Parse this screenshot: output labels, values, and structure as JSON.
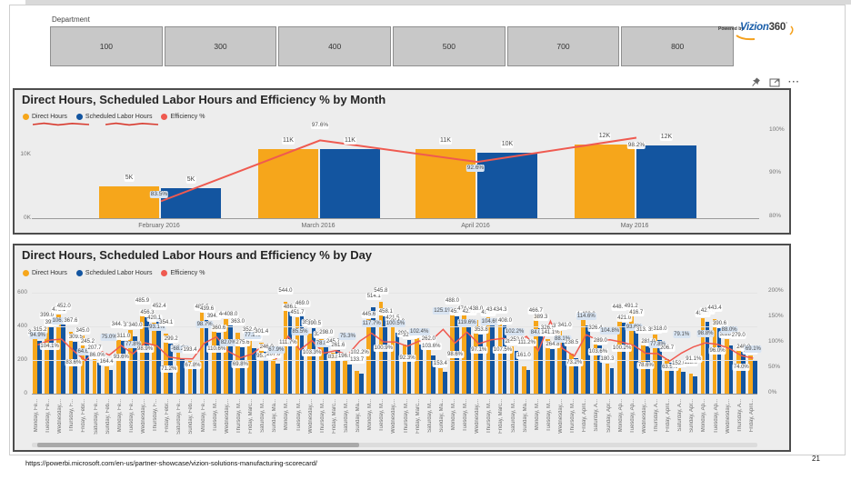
{
  "page": {
    "url": "https://powerbi.microsoft.com/en-us/partner-showcase/vizion-solutions-manufacturing-scorecard/",
    "page_number": "21"
  },
  "slicer": {
    "label": "Department",
    "buttons": [
      "100",
      "300",
      "400",
      "500",
      "700",
      "800"
    ]
  },
  "logo": {
    "powered_by": "Powered by",
    "brand_vizion": "Vizion",
    "brand_360": "360",
    "mark": "°"
  },
  "visual_header": {
    "icons": [
      "pin-icon",
      "focus-mode-icon",
      "more-options-icon"
    ],
    "more_glyph": "···"
  },
  "colors": {
    "direct_hours": "#F6A61B",
    "scheduled_hours": "#1355A0",
    "efficiency_line": "#EF5A50",
    "panel_bg": "#EDEDED",
    "panel_border": "#4D4D4D",
    "slicer_button": "#C8C8C8",
    "eff_label_tint": "#D8E4F2"
  },
  "chart_data": [
    {
      "type": "bar",
      "title": "Direct Hours, Scheduled Labor Hours and Efficiency % by Month",
      "categories": [
        "February 2016",
        "March 2016",
        "April 2016",
        "May 2016"
      ],
      "series": [
        {
          "name": "Direct Hours",
          "color": "#F6A61B",
          "values_k": [
            5.0,
            10.9,
            10.9,
            11.6
          ],
          "labels": [
            "5K",
            "11K",
            "11K",
            "12K"
          ]
        },
        {
          "name": "Scheduled Labor Hours",
          "color": "#1355A0",
          "values_k": [
            4.65,
            10.85,
            10.25,
            11.5
          ],
          "labels": [
            "5K",
            "11K",
            "10K",
            "12K"
          ]
        },
        {
          "name": "Efficiency %",
          "color": "#EF5A50",
          "axis": "right",
          "values_pct": [
            83.5,
            97.6,
            92.6,
            98.2
          ],
          "labels": [
            "83.5%",
            "97.6%",
            "92.6%",
            "98.2%"
          ]
        }
      ],
      "ylabel_left_ticks": [
        "10K",
        "0K"
      ],
      "ylabel_right_ticks": [
        "100%",
        "90%",
        "80%"
      ],
      "y_left_range_k": [
        0,
        14.3
      ],
      "y_right_range_pct": [
        80,
        100
      ],
      "legend_underline_annotation": true
    },
    {
      "type": "bar",
      "title": "Direct Hours, Scheduled Labor Hours and Efficiency % by Day",
      "series_names": [
        "Direct Hours",
        "Scheduled Labor Hours",
        "Efficiency %"
      ],
      "ylabel_left_ticks": [
        "600",
        "400",
        "200",
        "0"
      ],
      "ylabel_right_ticks": [
        "200%",
        "150%",
        "100%",
        "50%",
        "0%"
      ],
      "y_left_range": [
        0,
        600
      ],
      "y_right_range_pct": [
        0,
        200
      ],
      "days": [
        {
          "d": "Monday, Fe...",
          "dh": 333.6,
          "slh": 315.2,
          "eff": 94.9
        },
        {
          "d": "Tuesday, Fe...",
          "dh": 399.0,
          "slh": 393.1,
          "eff": 104.1
        },
        {
          "d": "Wednesday,...",
          "dh": 470.1,
          "slh": 452.0,
          "eff": 106.1
        },
        {
          "d": "Thursday, F...",
          "dh": 367.6,
          "slh": 309.5,
          "eff": 83.6
        },
        {
          "d": "Friday, Febr...",
          "dh": 345.0,
          "slh": 245.2,
          "eff": 64.6
        },
        {
          "d": "Saturday, Fe...",
          "dh": 207.7,
          "slh": 182.0,
          "eff": 86.0
        },
        {
          "d": "Sunday, Feb...",
          "dh": 164.4,
          "slh": 141.0,
          "eff": 75.0
        },
        {
          "d": "Monday, Fe...",
          "dh": 344.6,
          "slh": 311.0,
          "eff": 93.6
        },
        {
          "d": "Tuesday, Fe...",
          "dh": 377.9,
          "slh": 340.0,
          "eff": 77.8
        },
        {
          "d": "Wednesday,...",
          "dh": 485.9,
          "slh": 456.3,
          "eff": 98.9
        },
        {
          "d": "Thursday, F...",
          "dh": 420.1,
          "slh": 452.4,
          "eff": 93.1
        },
        {
          "d": "Friday, Febr...",
          "dh": 354.1,
          "slh": 299.2,
          "eff": 71.2
        },
        {
          "d": "Saturday, Fe...",
          "dh": 243.2,
          "slh": 205.0,
          "eff": 68.2
        },
        {
          "d": "Sunday, Feb...",
          "dh": 193.4,
          "slh": 164.8,
          "eff": 67.8
        },
        {
          "d": "Monday, Fe...",
          "dh": 485.5,
          "slh": 439.6,
          "eff": 98.7
        },
        {
          "d": "Tuesday, M...",
          "dh": 394.7,
          "slh": 360.6,
          "eff": 110.6
        },
        {
          "d": "Wednesday,...",
          "dh": 441.2,
          "slh": 408.0,
          "eff": 82.0
        },
        {
          "d": "Thursday, M...",
          "dh": 363.0,
          "slh": 275.6,
          "eff": 69.8
        },
        {
          "d": "Friday, Marc...",
          "dh": 352.4,
          "slh": 270.7,
          "eff": 77.2
        },
        {
          "d": "Saturday, M...",
          "dh": 301.4,
          "slh": 246.0,
          "eff": 95.7
        },
        {
          "d": "Sunday, Ma...",
          "dh": 207.0,
          "slh": 176.0,
          "eff": 67.9
        },
        {
          "d": "Monday, M...",
          "dh": 544.0,
          "slh": 486.8,
          "eff": 111.7
        },
        {
          "d": "Tuesday, M...",
          "dh": 451.7,
          "slh": 469.0,
          "eff": 85.5
        },
        {
          "d": "Wednesday,...",
          "dh": 356.0,
          "slh": 390.5,
          "eff": 103.3
        },
        {
          "d": "Thursday, M...",
          "dh": 326.5,
          "slh": 298.0,
          "eff": 78.8
        },
        {
          "d": "Friday, Marc...",
          "dh": 245.7,
          "slh": 261.6,
          "eff": 83.8
        },
        {
          "d": "Saturday, M...",
          "dh": 196.0,
          "slh": 171.0,
          "eff": 75.3
        },
        {
          "d": "Sunday, Ma...",
          "dh": 133.7,
          "slh": 118.0,
          "eff": 102.2
        },
        {
          "d": "Monday, M...",
          "dh": 445.6,
          "slh": 514.1,
          "eff": 117.7
        },
        {
          "d": "Tuesday, M...",
          "dh": 545.8,
          "slh": 458.1,
          "eff": 100.9
        },
        {
          "d": "Wednesday,...",
          "dh": 421.5,
          "slh": 364.0,
          "eff": 100.5
        },
        {
          "d": "Thursday, M...",
          "dh": 290.9,
          "slh": 321.0,
          "eff": 92.3
        },
        {
          "d": "Friday, Marc...",
          "dh": 331.0,
          "slh": 292.0,
          "eff": 102.4
        },
        {
          "d": "Saturday, M...",
          "dh": 262.0,
          "slh": 229.0,
          "eff": 103.6
        },
        {
          "d": "Sunday, Ma...",
          "dh": 153.4,
          "slh": 131.0,
          "eff": 125.1
        },
        {
          "d": "Monday, M...",
          "dh": 488.0,
          "slh": 459.0,
          "eff": 98.6
        },
        {
          "d": "Tuesday, M...",
          "dh": 474.6,
          "slh": 423.1,
          "eff": 119.6
        },
        {
          "d": "Wednesday,...",
          "dh": 438.0,
          "slh": 353.8,
          "eff": 97.1
        },
        {
          "d": "Thursday, M...",
          "dh": 453.1,
          "slh": 431.0,
          "eff": 104.6
        },
        {
          "d": "Friday, Marc...",
          "dh": 434.3,
          "slh": 408.0,
          "eff": 107.5
        },
        {
          "d": "Saturday, M...",
          "dh": 281.0,
          "slh": 252.0,
          "eff": 102.2
        },
        {
          "d": "Sunday, Ma...",
          "dh": 161.0,
          "slh": 139.0,
          "eff": 111.2
        },
        {
          "d": "Monday, M...",
          "dh": 466.7,
          "slh": 389.3,
          "eff": 84.0
        },
        {
          "d": "Tuesday, M...",
          "dh": 326.9,
          "slh": 264.8,
          "eff": 141.1
        },
        {
          "d": "Wednesday,...",
          "dh": 373.6,
          "slh": 341.0,
          "eff": 88.1
        },
        {
          "d": "Thursday, M...",
          "dh": 238.5,
          "slh": 212.0,
          "eff": 73.2
        },
        {
          "d": "Friday, April...",
          "dh": 445.7,
          "slh": 402.8,
          "eff": 114.6
        },
        {
          "d": "Saturday, A...",
          "dh": 326.4,
          "slh": 289.0,
          "eff": 103.6
        },
        {
          "d": "Sunday, Apr...",
          "dh": 180.3,
          "slh": 154.0,
          "eff": 104.8
        },
        {
          "d": "Monday, Ap...",
          "dh": 448.5,
          "slh": 421.0,
          "eff": 100.2
        },
        {
          "d": "Tuesday, Ap...",
          "dh": 491.2,
          "slh": 416.7,
          "eff": 93.6
        },
        {
          "d": "Wednesday,...",
          "dh": 313.7,
          "slh": 281.0,
          "eff": 78.6
        },
        {
          "d": "Thursday, A...",
          "dh": 350.4,
          "slh": 318.0,
          "eff": 77.8
        },
        {
          "d": "Friday, April...",
          "dh": 206.7,
          "slh": 184.0,
          "eff": 63.5
        },
        {
          "d": "Saturday, A...",
          "dh": 152.0,
          "slh": 131.0,
          "eff": 79.1
        },
        {
          "d": "Sunday, Apr...",
          "dh": 118.0,
          "slh": 101.0,
          "eff": 91.1
        },
        {
          "d": "Monday, Ap...",
          "dh": 450.5,
          "slh": 429.0,
          "eff": 98.8
        },
        {
          "d": "Tuesday, Ap...",
          "dh": 443.4,
          "slh": 390.6,
          "eff": 96.0
        },
        {
          "d": "Wednesday,...",
          "dh": 324.7,
          "slh": 288.0,
          "eff": 88.0
        },
        {
          "d": "Thursday, A...",
          "dh": 279.0,
          "slh": 248.0,
          "eff": 74.0
        },
        {
          "d": "Friday, April...",
          "dh": 226.2,
          "slh": 199.0,
          "eff": 69.1
        }
      ]
    }
  ]
}
